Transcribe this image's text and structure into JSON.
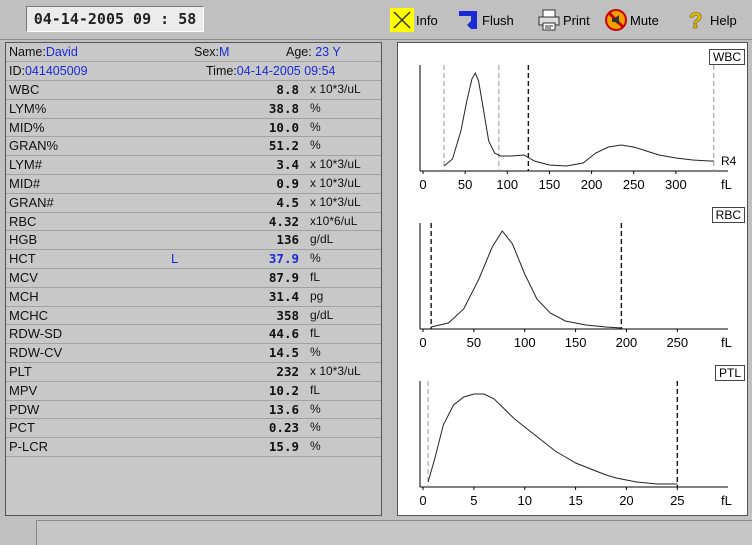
{
  "toolbar": {
    "datetime": "04-14-2005  09 : 58",
    "info_label": "Info",
    "flush_label": "Flush",
    "print_label": "Print",
    "mute_label": "Mute",
    "help_label": "Help"
  },
  "patient": {
    "name_label": "Name:",
    "name": "David",
    "sex_label": "Sex:",
    "sex": "M",
    "age_label": "Age:",
    "age": "23 Y",
    "id_label": "ID:",
    "id": "041405009",
    "time_label": "Time:",
    "time": "04-14-2005 09:54"
  },
  "results": [
    {
      "name": "WBC",
      "flag": "",
      "value": "8.8",
      "unit": "x  10*3/uL"
    },
    {
      "name": "LYM%",
      "flag": "",
      "value": "38.8",
      "unit": "%"
    },
    {
      "name": "MID%",
      "flag": "",
      "value": "10.0",
      "unit": "%"
    },
    {
      "name": "GRAN%",
      "flag": "",
      "value": "51.2",
      "unit": "%"
    },
    {
      "name": "LYM#",
      "flag": "",
      "value": "3.4",
      "unit": "x  10*3/uL"
    },
    {
      "name": "MID#",
      "flag": "",
      "value": "0.9",
      "unit": "x  10*3/uL"
    },
    {
      "name": "GRAN#",
      "flag": "",
      "value": "4.5",
      "unit": "x  10*3/uL"
    },
    {
      "name": "RBC",
      "flag": "",
      "value": "4.32",
      "unit": "x10*6/uL"
    },
    {
      "name": "HGB",
      "flag": "",
      "value": "136",
      "unit": "g/dL"
    },
    {
      "name": "HCT",
      "flag": "L",
      "value": "37.9",
      "unit": "%"
    },
    {
      "name": "MCV",
      "flag": "",
      "value": "87.9",
      "unit": "fL"
    },
    {
      "name": "MCH",
      "flag": "",
      "value": "31.4",
      "unit": "pg"
    },
    {
      "name": "MCHC",
      "flag": "",
      "value": "358",
      "unit": "g/dL"
    },
    {
      "name": "RDW-SD",
      "flag": "",
      "value": "44.6",
      "unit": "fL"
    },
    {
      "name": "RDW-CV",
      "flag": "",
      "value": "14.5",
      "unit": "%"
    },
    {
      "name": "PLT",
      "flag": "",
      "value": "232",
      "unit": "x  10*3/uL"
    },
    {
      "name": "MPV",
      "flag": "",
      "value": "10.2",
      "unit": "fL"
    },
    {
      "name": "PDW",
      "flag": "",
      "value": "13.6",
      "unit": "%"
    },
    {
      "name": "PCT",
      "flag": "",
      "value": "0.23",
      "unit": "%"
    },
    {
      "name": "P-LCR",
      "flag": "",
      "value": "15.9",
      "unit": "%"
    }
  ],
  "histograms": [
    {
      "title": "WBC",
      "axis_unit": "fL",
      "ticks": [
        0,
        50,
        100,
        150,
        200,
        250,
        300
      ],
      "xmax": 350,
      "region_label": "R4",
      "markers_dashed_gray": [
        25,
        90,
        345
      ],
      "markers_dashed_black": [
        125
      ],
      "curve": [
        [
          25,
          0.05
        ],
        [
          35,
          0.12
        ],
        [
          45,
          0.4
        ],
        [
          52,
          0.7
        ],
        [
          58,
          0.92
        ],
        [
          62,
          0.98
        ],
        [
          66,
          0.9
        ],
        [
          72,
          0.6
        ],
        [
          78,
          0.3
        ],
        [
          85,
          0.18
        ],
        [
          92,
          0.15
        ],
        [
          105,
          0.15
        ],
        [
          120,
          0.16
        ],
        [
          132,
          0.1
        ],
        [
          150,
          0.06
        ],
        [
          170,
          0.05
        ],
        [
          190,
          0.08
        ],
        [
          205,
          0.18
        ],
        [
          220,
          0.24
        ],
        [
          235,
          0.26
        ],
        [
          250,
          0.24
        ],
        [
          265,
          0.2
        ],
        [
          280,
          0.16
        ],
        [
          300,
          0.13
        ],
        [
          320,
          0.11
        ],
        [
          340,
          0.1
        ],
        [
          345,
          0.1
        ]
      ]
    },
    {
      "title": "RBC",
      "axis_unit": "fL",
      "ticks": [
        0,
        50,
        100,
        150,
        200,
        250
      ],
      "xmax": 290,
      "markers_dashed_black": [
        8,
        195
      ],
      "curve": [
        [
          8,
          0.02
        ],
        [
          25,
          0.06
        ],
        [
          40,
          0.2
        ],
        [
          55,
          0.5
        ],
        [
          68,
          0.82
        ],
        [
          78,
          0.98
        ],
        [
          88,
          0.85
        ],
        [
          100,
          0.55
        ],
        [
          112,
          0.3
        ],
        [
          125,
          0.16
        ],
        [
          140,
          0.08
        ],
        [
          160,
          0.04
        ],
        [
          180,
          0.02
        ],
        [
          195,
          0.01
        ]
      ]
    },
    {
      "title": "PTL",
      "axis_unit": "fL",
      "ticks": [
        0,
        5,
        10,
        15,
        20,
        25
      ],
      "xmax": 29,
      "markers_dashed_gray": [
        0.5
      ],
      "markers_dashed_black": [
        25
      ],
      "curve": [
        [
          0.5,
          0.05
        ],
        [
          1.2,
          0.3
        ],
        [
          2,
          0.62
        ],
        [
          3,
          0.82
        ],
        [
          4,
          0.9
        ],
        [
          5,
          0.93
        ],
        [
          6,
          0.93
        ],
        [
          7,
          0.88
        ],
        [
          8,
          0.78
        ],
        [
          9,
          0.68
        ],
        [
          10,
          0.6
        ],
        [
          11,
          0.52
        ],
        [
          12,
          0.44
        ],
        [
          13,
          0.36
        ],
        [
          14,
          0.3
        ],
        [
          15,
          0.24
        ],
        [
          16,
          0.2
        ],
        [
          17,
          0.16
        ],
        [
          18,
          0.12
        ],
        [
          19,
          0.09
        ],
        [
          20,
          0.07
        ],
        [
          21,
          0.05
        ],
        [
          22,
          0.04
        ],
        [
          23,
          0.03
        ],
        [
          24,
          0.03
        ],
        [
          25,
          0.03
        ]
      ]
    }
  ],
  "colors": {
    "blue_value": "#1a2bd6",
    "info_bg": "#ffff00"
  }
}
